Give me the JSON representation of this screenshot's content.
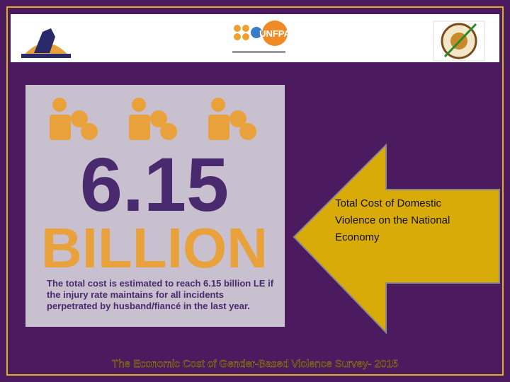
{
  "header": {
    "center_logo": "UNFPA"
  },
  "infographic": {
    "figure": "6.15",
    "unit": "BILLION",
    "description": [
      "The total cost is estimated to reach 6.15 billion LE if",
      "the injury rate maintains for all incidents",
      "perpetrated by husband/fiancé in the last year."
    ]
  },
  "arrow": {
    "lines": [
      "Total Cost of Domestic",
      "Violence on the National",
      "Economy"
    ]
  },
  "footer": {
    "text": "The Economic Cost of Gender-Based Violence Survey- 2015"
  }
}
